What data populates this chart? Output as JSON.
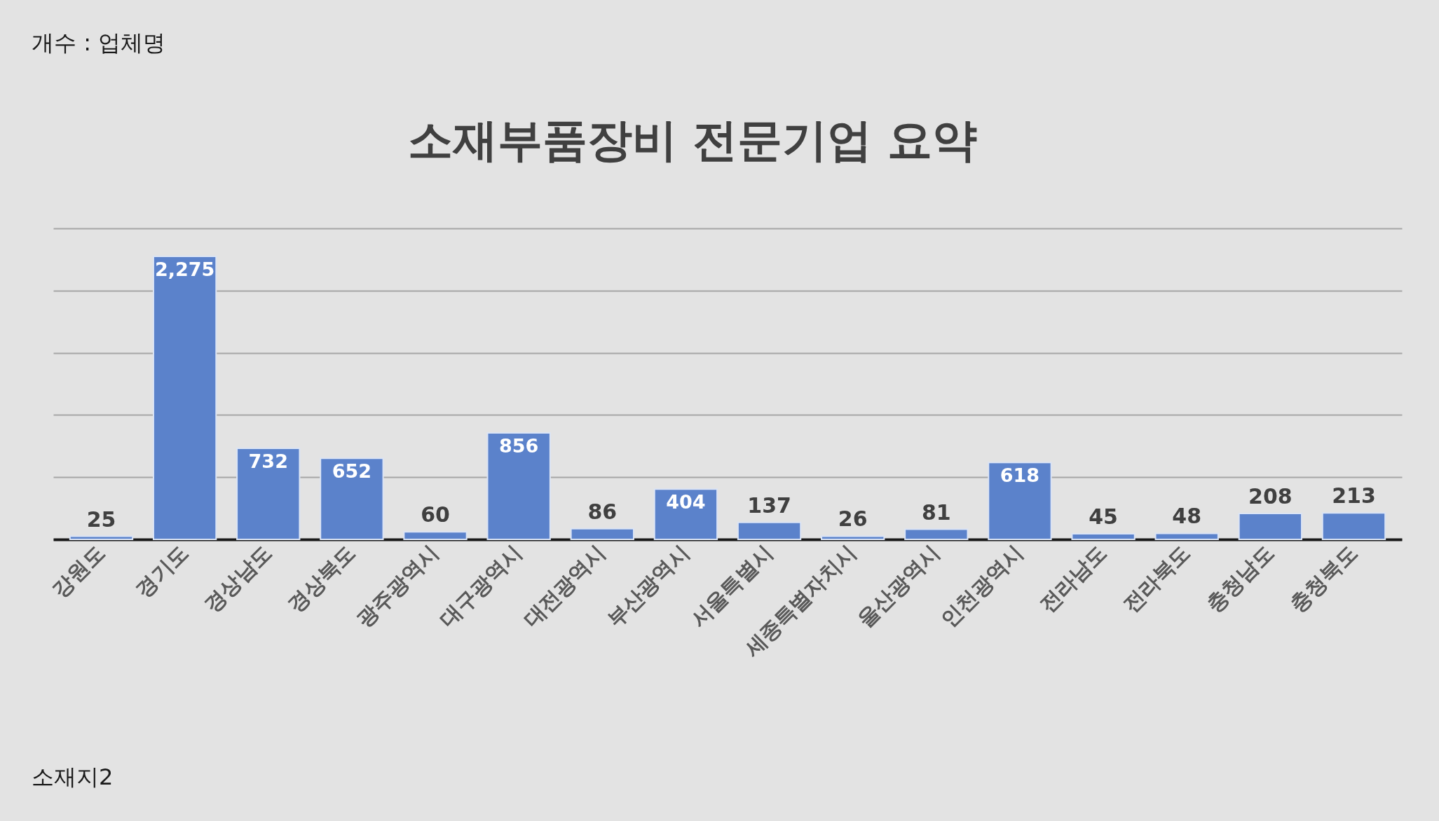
{
  "chart_data": {
    "type": "bar",
    "title": "소재부품장비 전문기업 요약",
    "categories": [
      "강원도",
      "경기도",
      "경상남도",
      "경상북도",
      "광주광역시",
      "대구광역시",
      "대전광역시",
      "부산광역시",
      "서울특별시",
      "세종특별자치시",
      "울산광역시",
      "인천광역시",
      "전라남도",
      "전라북도",
      "충청남도",
      "충청북도"
    ],
    "values": [
      25,
      2275,
      732,
      652,
      60,
      856,
      86,
      404,
      137,
      26,
      81,
      618,
      45,
      48,
      208,
      213
    ],
    "value_labels": [
      "25",
      "2,275",
      "732",
      "652",
      "60",
      "856",
      "86",
      "404",
      "137",
      "26",
      "81",
      "618",
      "45",
      "48",
      "208",
      "213"
    ],
    "color": "#5b82cb",
    "ylim": [
      0,
      2500
    ],
    "yticks": [
      {
        "value": 0,
        "label": null
      },
      {
        "value": 500,
        "label": null
      },
      {
        "value": 1000,
        "label": null
      },
      {
        "value": 1500,
        "label": null
      },
      {
        "value": 2000,
        "label": null
      },
      {
        "value": 2500,
        "label": null
      }
    ],
    "grid": "y",
    "tick_labels": "x",
    "annotations": [
      "개수 : 업체명",
      "소재지2"
    ]
  }
}
